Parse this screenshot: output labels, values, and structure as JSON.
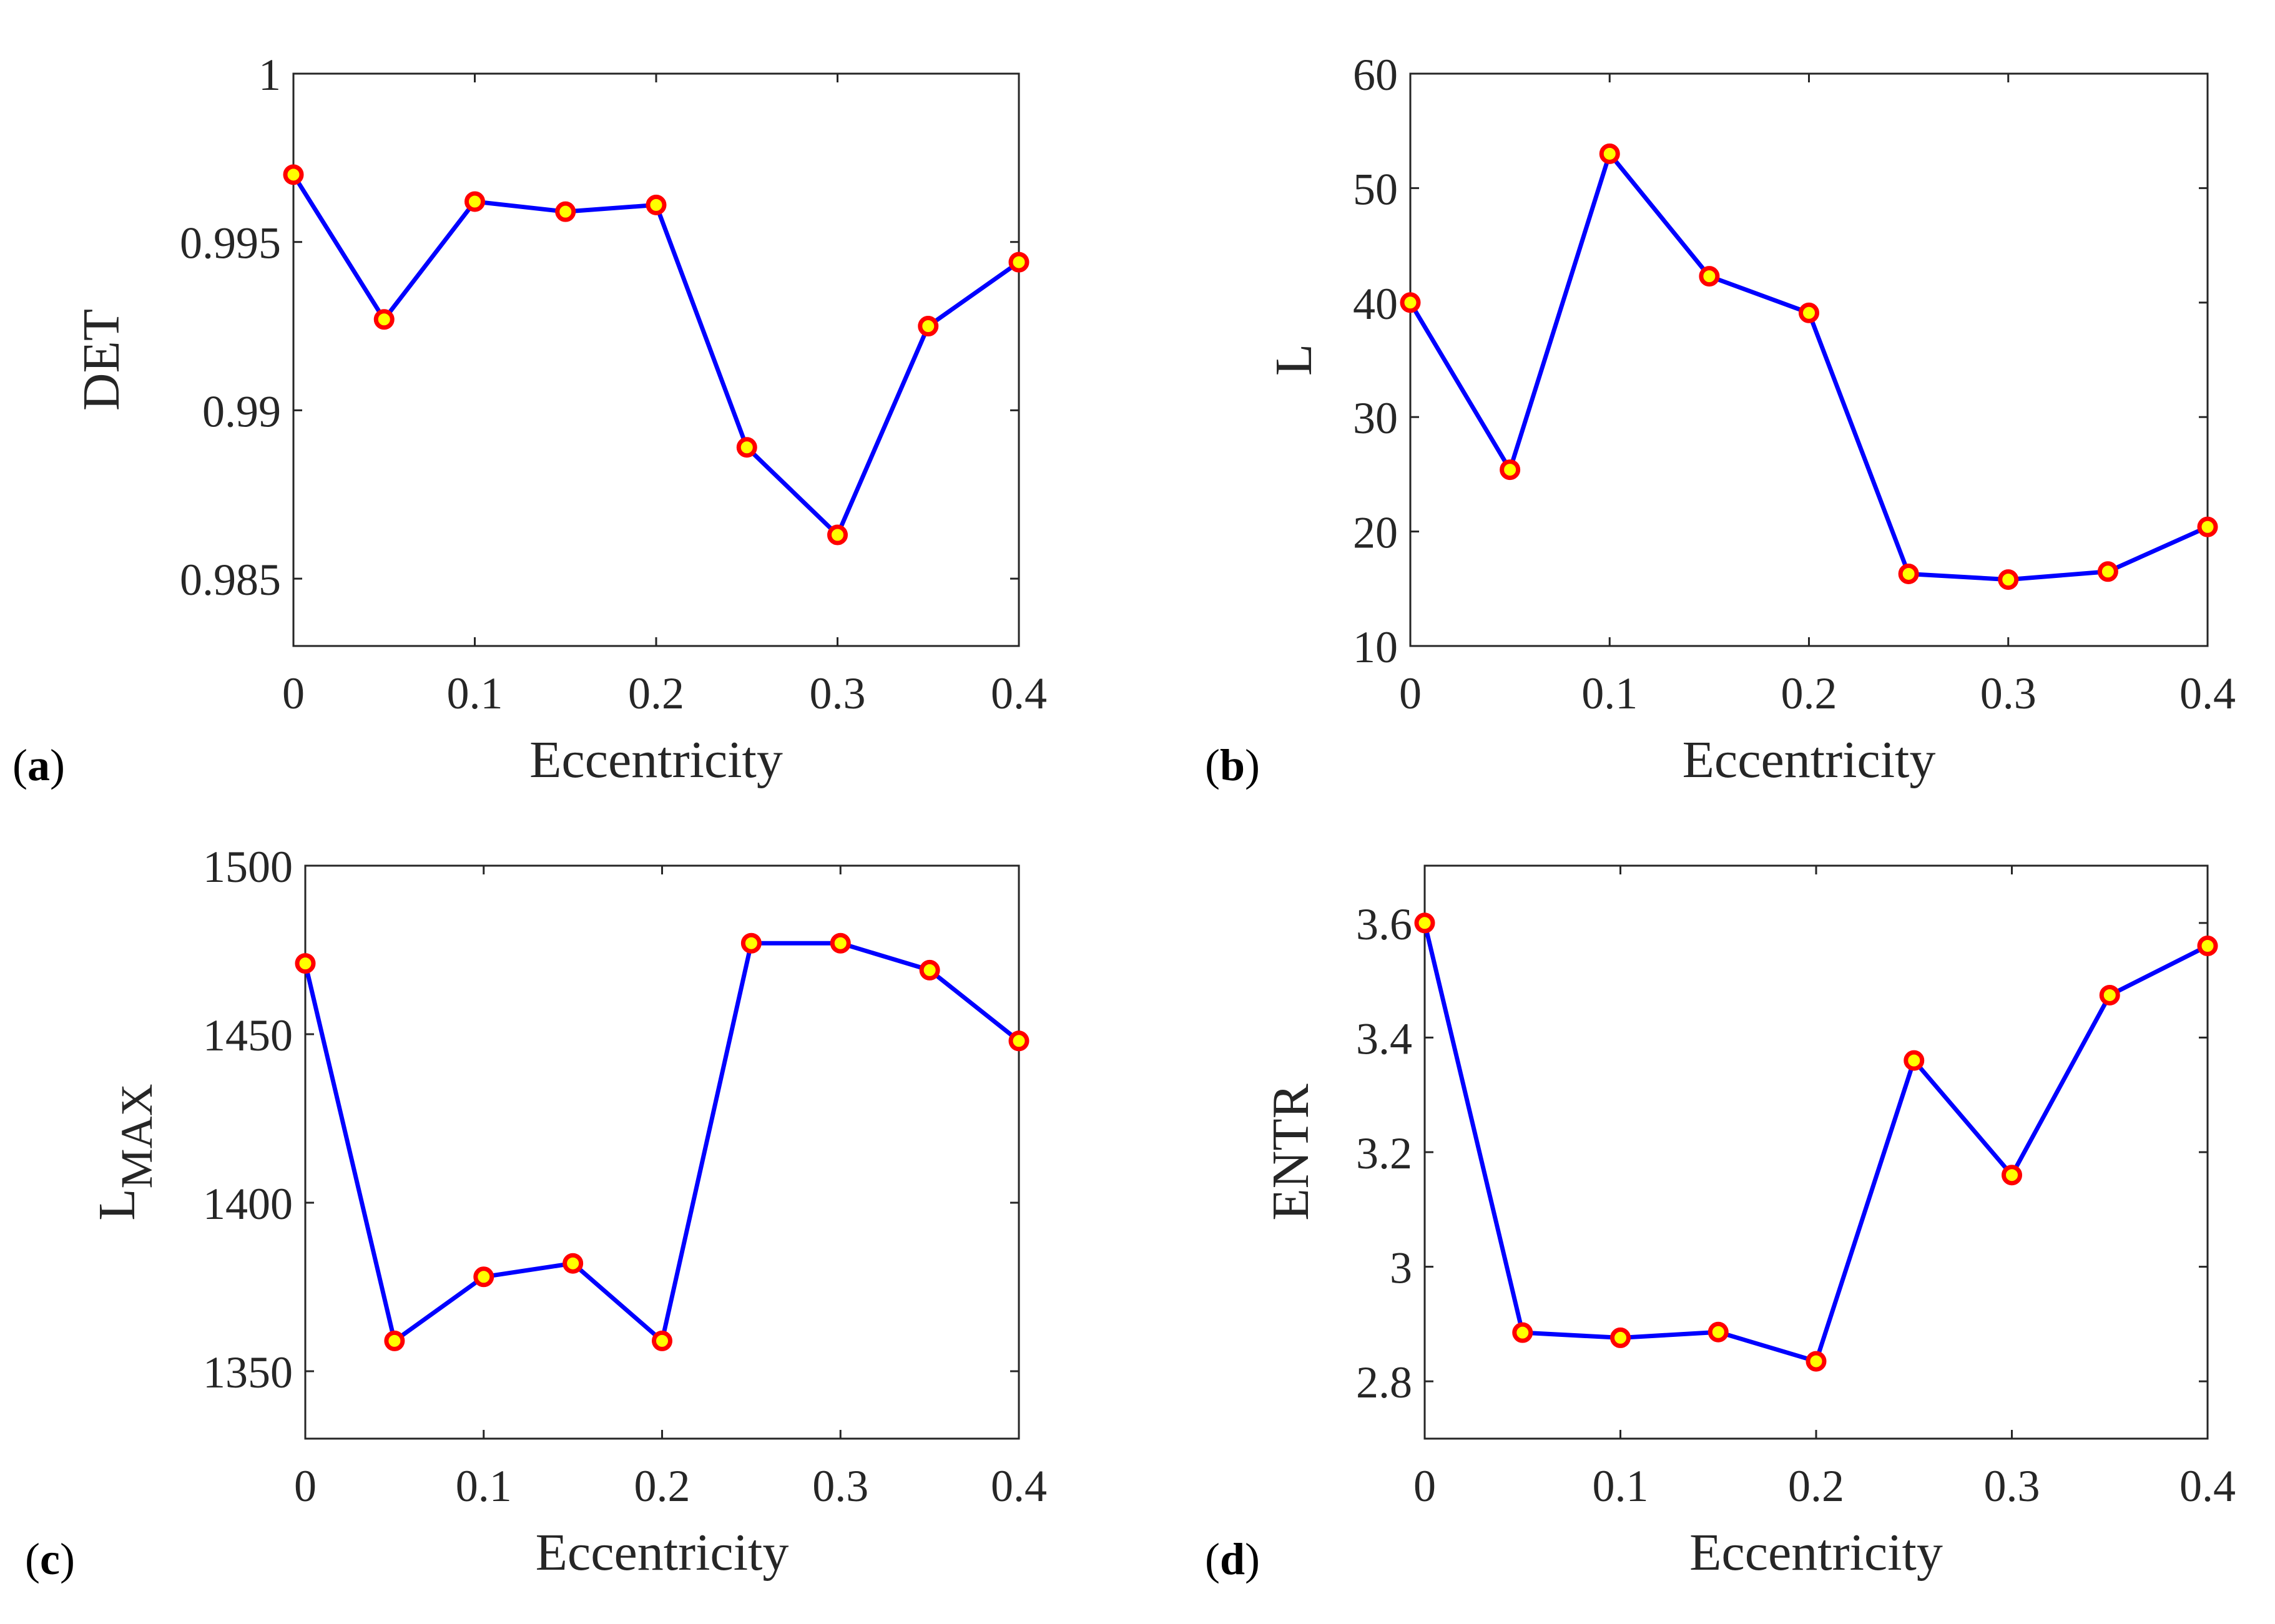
{
  "chart_data": [
    {
      "type": "line",
      "panel_label": "a",
      "title": "",
      "xlabel": "Eccentricity",
      "ylabel": "DET",
      "ylabel_sub": "",
      "xlim": [
        0,
        0.4
      ],
      "ylim": [
        0.983,
        1
      ],
      "xticks": [
        0,
        0.1,
        0.2,
        0.3,
        0.4
      ],
      "xtick_labels": [
        "0",
        "0.1",
        "0.2",
        "0.3",
        "0.4"
      ],
      "yticks": [
        0.985,
        0.99,
        0.995,
        1
      ],
      "ytick_labels": [
        "0.985",
        "0.99",
        "0.995",
        "1"
      ],
      "grid": false,
      "x": [
        0,
        0.05,
        0.1,
        0.15,
        0.2,
        0.25,
        0.3,
        0.35,
        0.4
      ],
      "series": [
        {
          "name": "DET",
          "values": [
            0.997,
            0.9927,
            0.9962,
            0.9959,
            0.9961,
            0.9889,
            0.9863,
            0.9925,
            0.9944
          ]
        }
      ]
    },
    {
      "type": "line",
      "panel_label": "b",
      "title": "",
      "xlabel": "Eccentricity",
      "ylabel": "L",
      "ylabel_sub": "",
      "xlim": [
        0,
        0.4
      ],
      "ylim": [
        10,
        60
      ],
      "xticks": [
        0,
        0.1,
        0.2,
        0.3,
        0.4
      ],
      "xtick_labels": [
        "0",
        "0.1",
        "0.2",
        "0.3",
        "0.4"
      ],
      "yticks": [
        10,
        20,
        30,
        40,
        50,
        60
      ],
      "ytick_labels": [
        "10",
        "20",
        "30",
        "40",
        "50",
        "60"
      ],
      "grid": false,
      "x": [
        0,
        0.05,
        0.1,
        0.15,
        0.2,
        0.25,
        0.3,
        0.35,
        0.4
      ],
      "series": [
        {
          "name": "L",
          "values": [
            40,
            25.4,
            53,
            42.3,
            39.1,
            16.3,
            15.8,
            16.5,
            20.4
          ]
        }
      ]
    },
    {
      "type": "line",
      "panel_label": "c",
      "title": "",
      "xlabel": "Eccentricity",
      "ylabel": "L",
      "ylabel_sub": "MAX",
      "xlim": [
        0,
        0.4
      ],
      "ylim": [
        1330,
        1500
      ],
      "xticks": [
        0,
        0.1,
        0.2,
        0.3,
        0.4
      ],
      "xtick_labels": [
        "0",
        "0.1",
        "0.2",
        "0.3",
        "0.4"
      ],
      "yticks": [
        1350,
        1400,
        1450,
        1500
      ],
      "ytick_labels": [
        "1350",
        "1400",
        "1450",
        "1500"
      ],
      "grid": false,
      "x": [
        0,
        0.05,
        0.1,
        0.15,
        0.2,
        0.25,
        0.3,
        0.35,
        0.4
      ],
      "series": [
        {
          "name": "LMAX",
          "values": [
            1471,
            1359,
            1378,
            1382,
            1359,
            1477,
            1477,
            1469,
            1448
          ]
        }
      ]
    },
    {
      "type": "line",
      "panel_label": "d",
      "title": "",
      "xlabel": "Eccentricity",
      "ylabel": "ENTR",
      "ylabel_sub": "",
      "xlim": [
        0,
        0.4
      ],
      "ylim": [
        2.7,
        3.7
      ],
      "xticks": [
        0,
        0.1,
        0.2,
        0.3,
        0.4
      ],
      "xtick_labels": [
        "0",
        "0.1",
        "0.2",
        "0.3",
        "0.4"
      ],
      "yticks": [
        2.8,
        3,
        3.2,
        3.4,
        3.6
      ],
      "ytick_labels": [
        "2.8",
        "3",
        "3.2",
        "3.4",
        "3.6"
      ],
      "grid": false,
      "x": [
        0,
        0.05,
        0.1,
        0.15,
        0.2,
        0.25,
        0.3,
        0.35,
        0.4
      ],
      "series": [
        {
          "name": "ENTR",
          "values": [
            3.6,
            2.885,
            2.876,
            2.886,
            2.835,
            3.36,
            3.16,
            3.474,
            3.56
          ]
        }
      ]
    }
  ],
  "style": {
    "line_color": "#0000ff",
    "marker_fill": "#ffff00",
    "marker_edge": "#ff0000",
    "axis_color": "#262626",
    "background": "#ffffff"
  }
}
